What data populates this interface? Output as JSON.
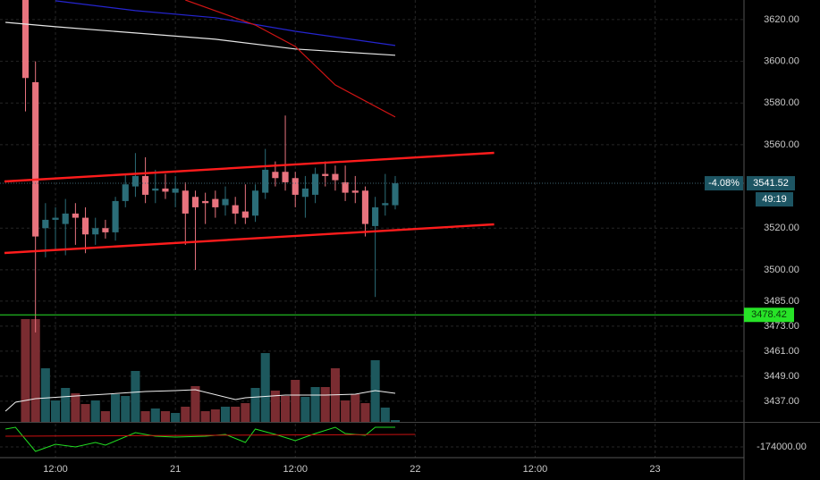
{
  "chart_data": [
    {
      "type": "candlestick",
      "x": [
        9,
        10,
        11,
        12,
        13,
        14,
        15,
        16,
        17,
        18,
        19,
        20,
        21,
        22,
        23,
        24,
        25,
        26,
        27,
        28,
        29,
        30,
        31,
        32,
        33,
        34,
        35,
        36,
        37,
        38,
        39,
        40,
        41,
        42,
        43,
        44,
        45,
        46
      ],
      "open": [
        3632,
        3590,
        3520,
        3524,
        3522,
        3527,
        3525,
        3517,
        3520,
        3518,
        3533,
        3540,
        3545,
        3538,
        3539,
        3537,
        3538,
        3535,
        3533,
        3534,
        3531,
        3531,
        3528,
        3526,
        3537,
        3547,
        3547,
        3544,
        3535,
        3536,
        3546,
        3546,
        3542,
        3538,
        3538,
        3521,
        3531,
        3531
      ],
      "high": [
        3640,
        3600,
        3532,
        3530,
        3534,
        3532,
        3530,
        3525,
        3524,
        3535,
        3546,
        3556,
        3554,
        3548,
        3546,
        3545,
        3542,
        3538,
        3537,
        3538,
        3540,
        3535,
        3541,
        3541,
        3558,
        3552,
        3574,
        3547,
        3545,
        3549,
        3552,
        3550,
        3550,
        3545,
        3540,
        3535,
        3546,
        3545
      ],
      "low": [
        3576,
        3470,
        3506,
        3510,
        3507,
        3512,
        3508,
        3512,
        3515,
        3514,
        3530,
        3535,
        3532,
        3532,
        3534,
        3530,
        3512,
        3500,
        3522,
        3525,
        3526,
        3522,
        3522,
        3523,
        3534,
        3540,
        3538,
        3530,
        3525,
        3532,
        3540,
        3538,
        3533,
        3532,
        3516,
        3487,
        3526,
        3529
      ],
      "close": [
        3592,
        3516,
        3524,
        3525,
        3527,
        3525,
        3517,
        3520,
        3518,
        3533,
        3541,
        3545,
        3536,
        3539,
        3537.5,
        3539,
        3527,
        3530,
        3532,
        3530,
        3534,
        3527,
        3525,
        3538,
        3548,
        3544,
        3542,
        3536,
        3539,
        3546,
        3545,
        3543,
        3537,
        3537,
        3522,
        3530,
        3532,
        3541.52
      ],
      "up_color": "#2b6d78",
      "down_color": "#e8737e",
      "lines": [
        {
          "color": "#e6e6e6",
          "x": [
            7,
            12,
            20,
            28,
            36,
            46
          ],
          "values": [
            3618.7,
            3616.6,
            3613.6,
            3610.6,
            3605.9,
            3602.9
          ]
        },
        {
          "color": "#2525d0",
          "x": [
            12,
            20,
            28,
            36,
            46
          ],
          "values": [
            3629,
            3624.3,
            3620.9,
            3614.4,
            3607.6
          ]
        },
        {
          "color": "#d01414",
          "x": [
            25,
            32,
            36,
            40,
            46
          ],
          "values": [
            3629.4,
            3617.4,
            3607.1,
            3588.7,
            3573.3
          ]
        }
      ],
      "trendlines": [
        {
          "color": "#ff1c1c",
          "x": [
            6.9,
            55.9
          ],
          "values": [
            3542.4,
            3556.1
          ]
        },
        {
          "color": "#ff1c1c",
          "x": [
            6.9,
            55.9
          ],
          "values": [
            3508.1,
            3521.8
          ]
        }
      ],
      "alert_level": 3478.42,
      "alert_color": "#27e327",
      "last_price": 3541.52,
      "change": "-4.08%",
      "countdown": "49:19",
      "label_color": "#1d5563",
      "xlim": [
        6.45,
        80.9
      ],
      "xticks": [
        {
          "value": 12,
          "label": "12:00"
        },
        {
          "value": 24,
          "label": "21"
        },
        {
          "value": 36,
          "label": "12:00"
        },
        {
          "value": 48,
          "label": "22"
        },
        {
          "value": 60,
          "label": "12:00"
        },
        {
          "value": 72,
          "label": "23"
        }
      ],
      "ylim": [
        3427.1,
        3629.4
      ],
      "yticks": [
        {
          "value": 3620,
          "label": "3620.00"
        },
        {
          "value": 3600,
          "label": "3600.00"
        },
        {
          "value": 3580,
          "label": "3580.00"
        },
        {
          "value": 3560,
          "label": "3560.00"
        },
        {
          "value": 3520,
          "label": "3520.00"
        },
        {
          "value": 3500,
          "label": "3500.00"
        },
        {
          "value": 3485,
          "label": "3485.00"
        },
        {
          "value": 3473,
          "label": "3473.00"
        },
        {
          "value": 3461,
          "label": "3461.00"
        },
        {
          "value": 3449,
          "label": "3449.00"
        },
        {
          "value": 3437,
          "label": "3437.00"
        }
      ],
      "grid": true
    },
    {
      "type": "bar",
      "x": [
        9,
        10,
        11,
        12,
        13,
        14,
        15,
        16,
        17,
        18,
        19,
        20,
        21,
        22,
        23,
        24,
        25,
        26,
        27,
        28,
        29,
        30,
        31,
        32,
        33,
        34,
        35,
        36,
        37,
        38,
        39,
        40,
        41,
        42,
        43,
        44,
        45,
        46
      ],
      "values": [
        115,
        115,
        60,
        24,
        38,
        32,
        20,
        24,
        12,
        31,
        29,
        57,
        12,
        15,
        12,
        10,
        17,
        40,
        12,
        14,
        17,
        17,
        21,
        38,
        77,
        35,
        29,
        47,
        28,
        39,
        39,
        60,
        24,
        31,
        21,
        69,
        16,
        2
      ],
      "up_color": "#1d585d",
      "down_color": "#7a2c31",
      "ma": {
        "color": "#f0f0f0",
        "x": [
          7,
          8,
          10,
          14,
          17,
          21,
          24,
          26,
          30,
          31,
          35,
          39,
          42,
          44,
          46
        ],
        "values": [
          12,
          22,
          26,
          29,
          31,
          34,
          35,
          36,
          25,
          27,
          30,
          30,
          31,
          35,
          32
        ]
      },
      "ylim": [
        0,
        120
      ]
    },
    {
      "type": "line",
      "series": [
        {
          "color": "#22dd22",
          "x": [
            7,
            8,
            10,
            12,
            14,
            16,
            17,
            20,
            22,
            24,
            27,
            29,
            31,
            32,
            34,
            36,
            38,
            40,
            41,
            43,
            44,
            46
          ],
          "values": [
            -154000,
            -152000,
            -179000,
            -171000,
            -174000,
            -169000,
            -172000,
            -158000,
            -162000,
            -163000,
            -162000,
            -160000,
            -169000,
            -154000,
            -160000,
            -167000,
            -159000,
            -152000,
            -159000,
            -161000,
            -152000,
            -152000
          ]
        },
        {
          "color": "#cc1111",
          "x": [
            7,
            48
          ],
          "values": [
            -162000,
            -160000
          ]
        }
      ],
      "ylim": [
        -186000,
        -149000
      ],
      "yticks": [
        {
          "value": -174000,
          "label": "-174000.00"
        }
      ]
    }
  ]
}
